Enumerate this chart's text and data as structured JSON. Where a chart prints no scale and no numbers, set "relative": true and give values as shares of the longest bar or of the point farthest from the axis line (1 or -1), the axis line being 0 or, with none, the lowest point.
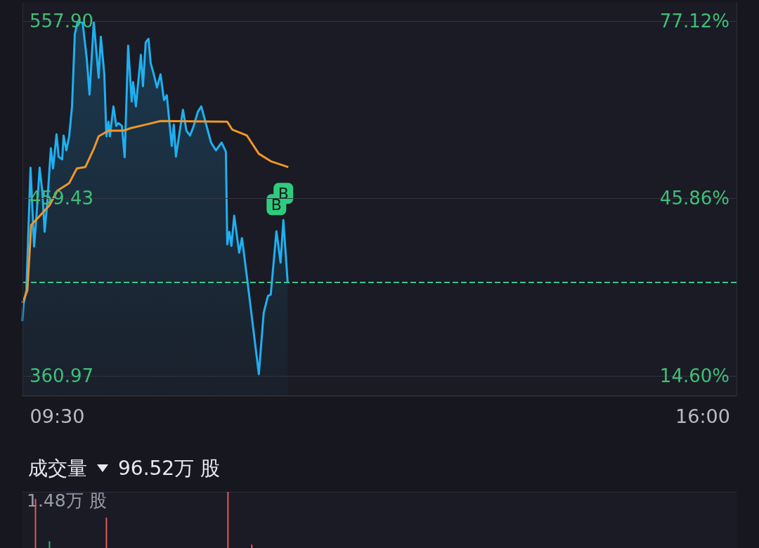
{
  "chart_data": [
    {
      "type": "line",
      "xlim": [
        9.15,
        16.34
      ],
      "xticks": [
        {
          "value": 9.5,
          "label": "09:30"
        },
        {
          "value": 16,
          "label": "16:00"
        }
      ],
      "ylim": [
        350,
        568
      ],
      "yticks": [
        {
          "value": 360.97,
          "label": "360.97"
        },
        {
          "value": 459.43,
          "label": "459.43"
        },
        {
          "value": 557.9,
          "label": "557.90"
        }
      ],
      "y2lim": [
        11.12,
        80.33
      ],
      "y2ticks": [
        {
          "value": 14.6,
          "label": "14.60%"
        },
        {
          "value": 45.86,
          "label": "45.86%"
        },
        {
          "value": 77.12,
          "label": "77.12%"
        }
      ],
      "grid": "y",
      "series": [
        {
          "type": "area",
          "color": "#1fb0f0",
          "x": [
            9.15,
            9.16,
            9.189,
            9.231,
            9.267,
            9.288,
            9.323,
            9.351,
            9.373,
            9.401,
            9.436,
            9.458,
            9.493,
            9.514,
            9.55,
            9.564,
            9.592,
            9.62,
            9.649,
            9.677,
            9.705,
            9.755,
            9.797,
            9.825,
            9.868,
            9.917,
            9.939,
            9.974,
            9.995,
            10.016,
            10.03,
            10.066,
            10.094,
            10.115,
            10.151,
            10.179,
            10.214,
            10.25,
            10.264,
            10.292,
            10.342,
            10.363,
            10.391,
            10.419,
            10.441,
            10.476,
            10.504,
            10.54,
            10.575,
            10.603,
            10.653,
            10.674,
            10.695,
            10.766,
            10.801,
            10.837,
            10.872,
            10.915,
            10.95,
            10.992,
            11.049,
            11.098,
            11.155,
            11.198,
            11.212,
            11.233,
            11.254,
            11.282,
            11.332,
            11.36,
            11.381,
            11.424,
            11.53,
            11.579,
            11.622,
            11.65,
            11.707,
            11.749,
            11.777,
            11.82
          ],
          "values": [
            391.3,
            400.6,
            408.4,
            476.5,
            432.7,
            447.4,
            476.5,
            462.5,
            440.9,
            458.3,
            487.3,
            476.1,
            495.0,
            482.6,
            481.1,
            494.3,
            486.1,
            493.9,
            510.5,
            550.7,
            557.3,
            557.3,
            537.2,
            517.1,
            557.3,
            526.4,
            549.2,
            528.3,
            493.9,
            502.0,
            493.9,
            510.5,
            499.7,
            501.2,
            499.7,
            482.3,
            544.2,
            513.2,
            524.0,
            510.5,
            539.1,
            521.7,
            546.1,
            548.0,
            534.5,
            527.5,
            521.0,
            528.3,
            514.0,
            516.7,
            488.5,
            500.4,
            482.6,
            508.6,
            497.0,
            494.3,
            499.3,
            507.4,
            510.5,
            502.0,
            490.4,
            486.1,
            490.4,
            485.4,
            433.9,
            440.9,
            433.1,
            449.8,
            429.3,
            437.4,
            428.5,
            409.5,
            361.9,
            396.0,
            405.3,
            406.0,
            441.2,
            423.8,
            447.4,
            413.0
          ]
        },
        {
          "type": "line",
          "color": "#f0962a",
          "x": [
            9.15,
            9.199,
            9.238,
            9.298,
            9.422,
            9.5,
            9.62,
            9.698,
            9.783,
            9.868,
            9.917,
            10.016,
            10.165,
            10.243,
            10.391,
            10.54,
            11.212,
            11.261,
            11.41,
            11.53,
            11.657,
            11.827
          ],
          "values": [
            401.4,
            408.4,
            444.7,
            448.2,
            455.6,
            463.7,
            467.9,
            476.1,
            476.8,
            486.9,
            493.9,
            497.0,
            497.0,
            498.5,
            500.4,
            502.4,
            502.0,
            497.7,
            494.3,
            484.2,
            479.9,
            476.8
          ]
        }
      ],
      "ref_lines": [
        {
          "axis": "y",
          "value": 413.0,
          "color": "#35c58a",
          "line_style": "dashed"
        }
      ],
      "annotations": [
        {
          "text": "B",
          "x": 11.707,
          "y": 441.2
        },
        {
          "text": "B",
          "x": 11.777,
          "y": 447.4
        }
      ]
    },
    {
      "type": "bar",
      "title": "成交量",
      "annotations": [
        "96.52万 股",
        "1.48万 股"
      ],
      "relative": true,
      "xlim": [
        9.15,
        16.34
      ],
      "x": [
        9.281,
        9.422,
        9.995,
        11.219,
        11.459
      ],
      "values": [
        0.875,
        0.12,
        0.54,
        1,
        0.06
      ],
      "colors": [
        "#e05a5a",
        "#2bb673",
        "#e05a5a",
        "#e05a5a",
        "#e05a5a"
      ]
    }
  ]
}
